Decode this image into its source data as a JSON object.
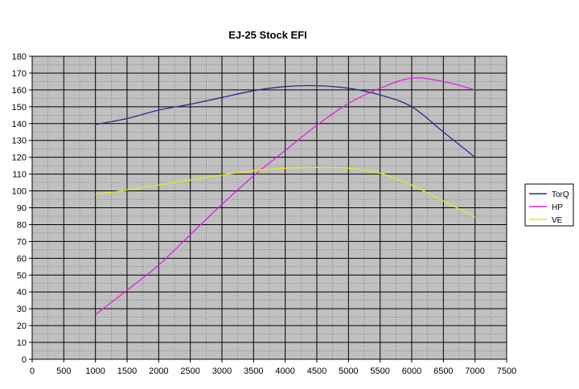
{
  "chart_data": {
    "type": "line",
    "title": "EJ-25 Stock EFI",
    "xlabel": "",
    "ylabel": "",
    "xlim": [
      0,
      7500
    ],
    "ylim": [
      0,
      180
    ],
    "x_ticks": [
      "0",
      "500",
      "1000",
      "1500",
      "2000",
      "2500",
      "3000",
      "3500",
      "4000",
      "4500",
      "5000",
      "5500",
      "6000",
      "6500",
      "7000",
      "7500"
    ],
    "y_ticks": [
      "0",
      "10",
      "20",
      "30",
      "40",
      "50",
      "60",
      "70",
      "80",
      "90",
      "100",
      "110",
      "120",
      "130",
      "140",
      "150",
      "160",
      "170",
      "180"
    ],
    "grid": true,
    "legend_position": "right",
    "x": [
      1000,
      1500,
      2000,
      2500,
      3000,
      3500,
      4000,
      4500,
      5000,
      5500,
      6000,
      6500,
      7000
    ],
    "series": [
      {
        "name": "TorQ",
        "color": "#1f2f8f",
        "values": [
          139.5,
          143,
          148,
          151.5,
          155.5,
          159.5,
          162,
          162.5,
          161,
          157,
          150,
          135,
          120
        ]
      },
      {
        "name": "HP",
        "color": "#e020e0",
        "values": [
          26.5,
          41,
          56,
          74,
          92,
          109,
          124,
          139,
          152,
          161,
          167,
          165,
          160
        ]
      },
      {
        "name": "VE",
        "color": "#e8e820",
        "values": [
          98,
          100.5,
          103.5,
          106.5,
          109.5,
          112,
          113.5,
          114,
          113.5,
          110.5,
          103.5,
          94,
          84.5
        ]
      }
    ],
    "colors": {
      "plot_background": "#c0c0c0",
      "gridline": "#000000"
    }
  }
}
